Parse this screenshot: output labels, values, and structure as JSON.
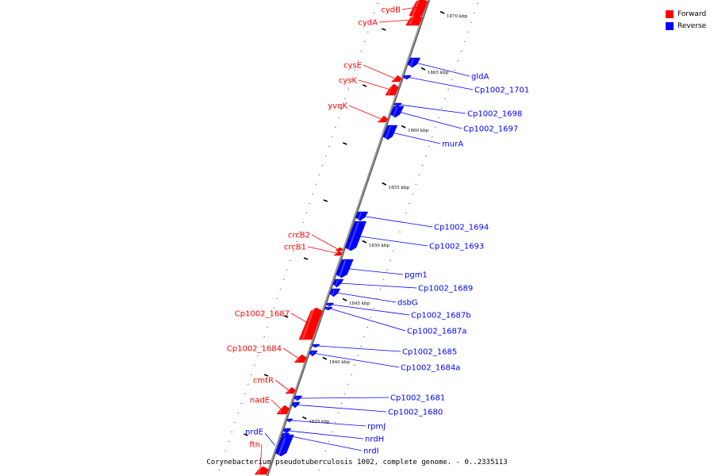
{
  "title": "Corynebacterium pseudotuberculosis 1002, complete genome. - 0..2335113",
  "colors": {
    "forward": "#ff0000",
    "reverse": "#0000ff"
  },
  "legend": [
    {
      "label": "Forward",
      "color": "#ff0000"
    },
    {
      "label": "Reverse",
      "color": "#0000ff"
    }
  ],
  "ticks": [
    {
      "label": "1870 kbp"
    },
    {
      "label": "1865 kbp"
    },
    {
      "label": "1860 kbp"
    },
    {
      "label": "1855 kbp"
    },
    {
      "label": "1850 kbp"
    },
    {
      "label": "1845 kbp"
    },
    {
      "label": "1840 kbp"
    },
    {
      "label": "1835 kbp"
    }
  ],
  "genes": [
    {
      "name": "cydB",
      "strand": "forward"
    },
    {
      "name": "cydA",
      "strand": "forward"
    },
    {
      "name": "cysE",
      "strand": "forward"
    },
    {
      "name": "cysK",
      "strand": "forward"
    },
    {
      "name": "yvqK",
      "strand": "forward"
    },
    {
      "name": "crcB2",
      "strand": "forward"
    },
    {
      "name": "crcB1",
      "strand": "forward"
    },
    {
      "name": "Cp1002_1687",
      "strand": "forward"
    },
    {
      "name": "Cp1002_1684",
      "strand": "forward"
    },
    {
      "name": "cmtR",
      "strand": "forward"
    },
    {
      "name": "nadE",
      "strand": "forward"
    },
    {
      "name": "nrdE",
      "strand": "reverse"
    },
    {
      "name": "ftn",
      "strand": "forward"
    },
    {
      "name": "gldA",
      "strand": "reverse"
    },
    {
      "name": "Cp1002_1701",
      "strand": "reverse"
    },
    {
      "name": "Cp1002_1698",
      "strand": "reverse"
    },
    {
      "name": "Cp1002_1697",
      "strand": "reverse"
    },
    {
      "name": "murA",
      "strand": "reverse"
    },
    {
      "name": "Cp1002_1694",
      "strand": "reverse"
    },
    {
      "name": "Cp1002_1693",
      "strand": "reverse"
    },
    {
      "name": "pgm1",
      "strand": "reverse"
    },
    {
      "name": "Cp1002_1689",
      "strand": "reverse"
    },
    {
      "name": "dsbG",
      "strand": "reverse"
    },
    {
      "name": "Cp1002_1687b",
      "strand": "reverse"
    },
    {
      "name": "Cp1002_1687a",
      "strand": "reverse"
    },
    {
      "name": "Cp1002_1685",
      "strand": "reverse"
    },
    {
      "name": "Cp1002_1684a",
      "strand": "reverse"
    },
    {
      "name": "Cp1002_1681",
      "strand": "reverse"
    },
    {
      "name": "Cp1002_1680",
      "strand": "reverse"
    },
    {
      "name": "rpmJ",
      "strand": "reverse"
    },
    {
      "name": "nrdH",
      "strand": "reverse"
    },
    {
      "name": "nrdI",
      "strand": "reverse"
    }
  ]
}
